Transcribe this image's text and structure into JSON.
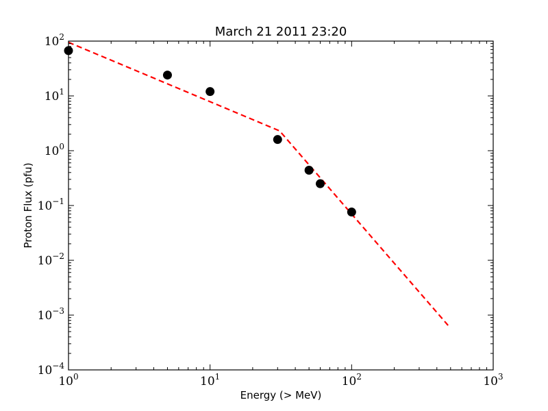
{
  "chart_data": {
    "type": "scatter",
    "title": "March 21 2011 23:20",
    "xlabel": "Energy (> MeV)",
    "ylabel": "Proton Flux (pfu)",
    "x_scale": "log",
    "y_scale": "log",
    "xlim": [
      1,
      1000
    ],
    "ylim": [
      0.0001,
      100
    ],
    "x_ticks": [
      {
        "base": "10",
        "exp": "0",
        "value": 1
      },
      {
        "base": "10",
        "exp": "1",
        "value": 10
      },
      {
        "base": "10",
        "exp": "2",
        "value": 100
      },
      {
        "base": "10",
        "exp": "3",
        "value": 1000
      }
    ],
    "y_ticks": [
      {
        "base": "10",
        "exp": "−4",
        "value": 0.0001
      },
      {
        "base": "10",
        "exp": "−3",
        "value": 0.001
      },
      {
        "base": "10",
        "exp": "−2",
        "value": 0.01
      },
      {
        "base": "10",
        "exp": "−1",
        "value": 0.1
      },
      {
        "base": "10",
        "exp": "0",
        "value": 1
      },
      {
        "base": "10",
        "exp": "1",
        "value": 10
      },
      {
        "base": "10",
        "exp": "2",
        "value": 100
      }
    ],
    "grid": false,
    "series": [
      {
        "kind": "points",
        "color": "#000000",
        "x": [
          1,
          5,
          10,
          30,
          50,
          60,
          100
        ],
        "y": [
          67,
          24,
          12,
          1.6,
          0.44,
          0.25,
          0.076
        ]
      },
      {
        "kind": "fit-line",
        "color": "#ff0000",
        "dash": "dashed",
        "x": [
          1,
          31,
          480
        ],
        "y": [
          95,
          2.3,
          0.00065
        ]
      }
    ]
  }
}
